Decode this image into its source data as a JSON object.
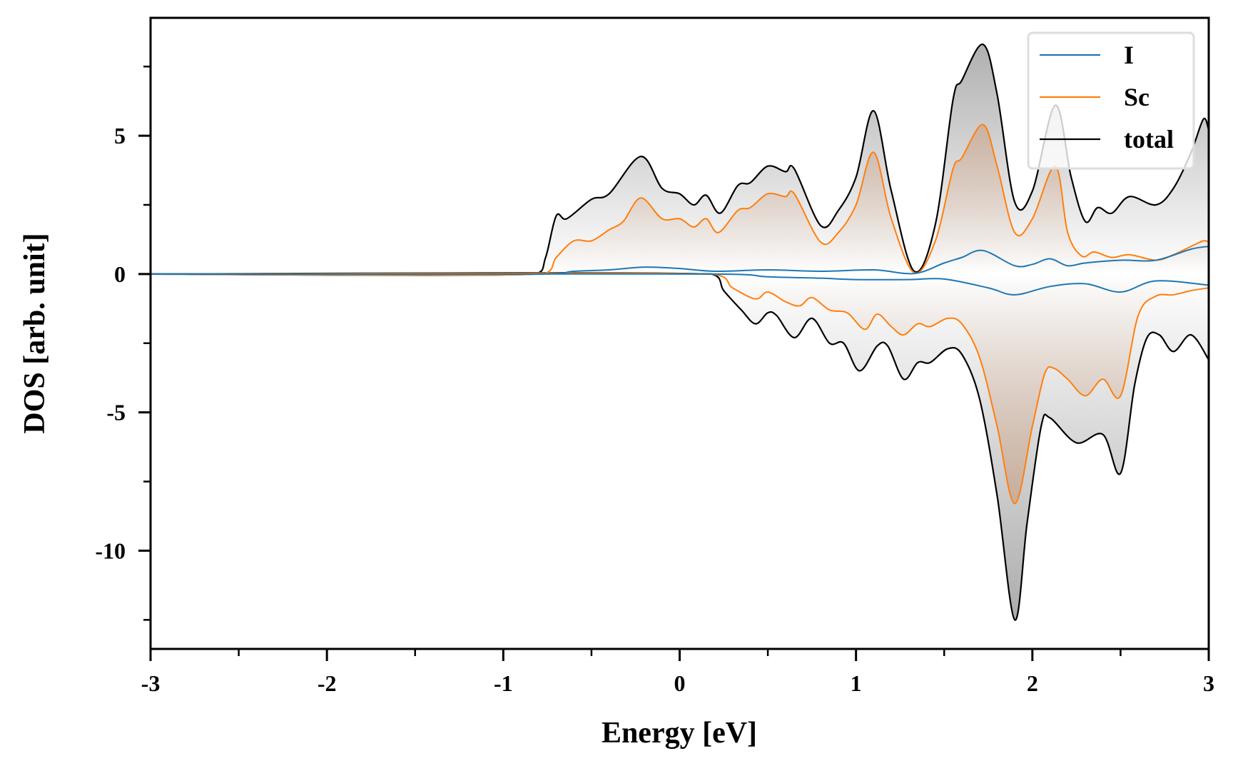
{
  "chart_data": {
    "type": "line",
    "title": "",
    "xlabel": "Energy [eV]",
    "ylabel": "DOS [arb. unit]",
    "xlim": [
      -3,
      3
    ],
    "ylim": [
      -13.55,
      9.26
    ],
    "xticks": [
      -3,
      -2,
      -1,
      0,
      1,
      2,
      3
    ],
    "xtick_labels": [
      "-3",
      "-2",
      "-1",
      "0",
      "1",
      "2",
      "3"
    ],
    "yticks": [
      -10,
      -5,
      0,
      5
    ],
    "ytick_labels": [
      "-10",
      "-5",
      "0",
      "5"
    ],
    "grid": false,
    "legend_position": "top-right",
    "series": [
      {
        "name": "I",
        "color": "#1f77b4",
        "fill": "#c8dbe8",
        "up": [
          [
            -3,
            0
          ],
          [
            -0.8,
            0
          ],
          [
            -0.6,
            0.1
          ],
          [
            -0.4,
            0.15
          ],
          [
            -0.2,
            0.25
          ],
          [
            0,
            0.2
          ],
          [
            0.2,
            0.1
          ],
          [
            0.5,
            0.15
          ],
          [
            0.8,
            0.1
          ],
          [
            1.1,
            0.15
          ],
          [
            1.33,
            0.02
          ],
          [
            1.5,
            0.4
          ],
          [
            1.6,
            0.6
          ],
          [
            1.72,
            0.85
          ],
          [
            1.9,
            0.3
          ],
          [
            2.0,
            0.35
          ],
          [
            2.1,
            0.55
          ],
          [
            2.2,
            0.3
          ],
          [
            2.3,
            0.4
          ],
          [
            2.5,
            0.5
          ],
          [
            2.7,
            0.5
          ],
          [
            2.9,
            0.9
          ],
          [
            3.0,
            1.0
          ]
        ],
        "down": [
          [
            -3,
            0
          ],
          [
            0.2,
            0
          ],
          [
            0.5,
            -0.1
          ],
          [
            0.8,
            -0.15
          ],
          [
            1.0,
            -0.2
          ],
          [
            1.3,
            -0.2
          ],
          [
            1.5,
            -0.18
          ],
          [
            1.75,
            -0.5
          ],
          [
            1.9,
            -0.75
          ],
          [
            2.1,
            -0.45
          ],
          [
            2.3,
            -0.35
          ],
          [
            2.5,
            -0.65
          ],
          [
            2.7,
            -0.25
          ],
          [
            3.0,
            -0.4
          ]
        ]
      },
      {
        "name": "Sc",
        "color": "#ff7f0e",
        "fill": "#c8916a",
        "up": [
          [
            -3,
            0
          ],
          [
            -0.78,
            0
          ],
          [
            -0.7,
            0.6
          ],
          [
            -0.6,
            1.2
          ],
          [
            -0.5,
            1.2
          ],
          [
            -0.4,
            1.6
          ],
          [
            -0.32,
            1.9
          ],
          [
            -0.22,
            2.75
          ],
          [
            -0.1,
            2.0
          ],
          [
            0,
            2.0
          ],
          [
            0.08,
            1.7
          ],
          [
            0.15,
            2.0
          ],
          [
            0.22,
            1.5
          ],
          [
            0.33,
            2.3
          ],
          [
            0.4,
            2.4
          ],
          [
            0.5,
            2.9
          ],
          [
            0.6,
            2.8
          ],
          [
            0.65,
            2.9
          ],
          [
            0.8,
            1.15
          ],
          [
            0.9,
            1.5
          ],
          [
            1.0,
            2.5
          ],
          [
            1.1,
            4.4
          ],
          [
            1.2,
            2.0
          ],
          [
            1.33,
            0.05
          ],
          [
            1.45,
            1.2
          ],
          [
            1.55,
            3.8
          ],
          [
            1.6,
            4.2
          ],
          [
            1.72,
            5.4
          ],
          [
            1.8,
            3.9
          ],
          [
            1.9,
            1.5
          ],
          [
            2.0,
            2.0
          ],
          [
            2.13,
            3.9
          ],
          [
            2.2,
            1.5
          ],
          [
            2.28,
            0.65
          ],
          [
            2.35,
            0.8
          ],
          [
            2.45,
            0.6
          ],
          [
            2.55,
            0.7
          ],
          [
            2.7,
            0.5
          ],
          [
            2.8,
            0.7
          ],
          [
            2.9,
            1.0
          ],
          [
            2.97,
            1.2
          ],
          [
            3.0,
            1.15
          ]
        ],
        "down": [
          [
            -3,
            0
          ],
          [
            0.18,
            0
          ],
          [
            0.3,
            -0.5
          ],
          [
            0.43,
            -0.9
          ],
          [
            0.5,
            -0.65
          ],
          [
            0.6,
            -1.0
          ],
          [
            0.68,
            -1.15
          ],
          [
            0.75,
            -0.85
          ],
          [
            0.85,
            -1.3
          ],
          [
            0.95,
            -1.4
          ],
          [
            1.05,
            -2.0
          ],
          [
            1.12,
            -1.45
          ],
          [
            1.2,
            -1.9
          ],
          [
            1.27,
            -2.2
          ],
          [
            1.35,
            -1.8
          ],
          [
            1.42,
            -1.9
          ],
          [
            1.52,
            -1.6
          ],
          [
            1.6,
            -1.8
          ],
          [
            1.7,
            -3.0
          ],
          [
            1.8,
            -5.5
          ],
          [
            1.9,
            -8.3
          ],
          [
            2.0,
            -5.5
          ],
          [
            2.07,
            -3.6
          ],
          [
            2.12,
            -3.4
          ],
          [
            2.2,
            -3.8
          ],
          [
            2.3,
            -4.4
          ],
          [
            2.4,
            -3.8
          ],
          [
            2.5,
            -4.4
          ],
          [
            2.6,
            -1.5
          ],
          [
            2.7,
            -0.8
          ],
          [
            2.8,
            -0.75
          ],
          [
            2.9,
            -0.6
          ],
          [
            3.0,
            -0.5
          ]
        ]
      },
      {
        "name": "total",
        "color": "#000000",
        "fill": "#8c8c8c",
        "up": [
          [
            -3,
            0
          ],
          [
            -0.82,
            0
          ],
          [
            -0.76,
            0.6
          ],
          [
            -0.7,
            2.1
          ],
          [
            -0.64,
            2.0
          ],
          [
            -0.5,
            2.7
          ],
          [
            -0.4,
            2.9
          ],
          [
            -0.22,
            4.25
          ],
          [
            -0.1,
            3.1
          ],
          [
            0,
            2.9
          ],
          [
            0.08,
            2.5
          ],
          [
            0.15,
            2.85
          ],
          [
            0.23,
            2.2
          ],
          [
            0.33,
            3.2
          ],
          [
            0.4,
            3.3
          ],
          [
            0.5,
            3.9
          ],
          [
            0.6,
            3.7
          ],
          [
            0.65,
            3.8
          ],
          [
            0.8,
            1.75
          ],
          [
            0.9,
            2.3
          ],
          [
            1.0,
            3.5
          ],
          [
            1.1,
            5.9
          ],
          [
            1.2,
            3.0
          ],
          [
            1.33,
            0.1
          ],
          [
            1.45,
            1.8
          ],
          [
            1.55,
            6.3
          ],
          [
            1.6,
            7.0
          ],
          [
            1.72,
            8.3
          ],
          [
            1.8,
            6.5
          ],
          [
            1.9,
            2.6
          ],
          [
            2.0,
            3.0
          ],
          [
            2.13,
            6.1
          ],
          [
            2.22,
            3.5
          ],
          [
            2.3,
            1.9
          ],
          [
            2.37,
            2.4
          ],
          [
            2.45,
            2.2
          ],
          [
            2.55,
            2.8
          ],
          [
            2.7,
            2.5
          ],
          [
            2.8,
            3.1
          ],
          [
            2.9,
            4.4
          ],
          [
            2.97,
            5.6
          ],
          [
            3.0,
            5.2
          ]
        ],
        "down": [
          [
            -3,
            0
          ],
          [
            0.18,
            0
          ],
          [
            0.25,
            -0.6
          ],
          [
            0.35,
            -1.3
          ],
          [
            0.43,
            -1.8
          ],
          [
            0.5,
            -1.4
          ],
          [
            0.55,
            -1.5
          ],
          [
            0.65,
            -2.3
          ],
          [
            0.75,
            -1.6
          ],
          [
            0.85,
            -2.5
          ],
          [
            0.93,
            -2.5
          ],
          [
            1.02,
            -3.5
          ],
          [
            1.12,
            -2.6
          ],
          [
            1.18,
            -2.6
          ],
          [
            1.27,
            -3.8
          ],
          [
            1.35,
            -3.2
          ],
          [
            1.42,
            -3.2
          ],
          [
            1.52,
            -2.7
          ],
          [
            1.6,
            -2.9
          ],
          [
            1.7,
            -4.5
          ],
          [
            1.8,
            -8.0
          ],
          [
            1.9,
            -12.5
          ],
          [
            1.97,
            -9.0
          ],
          [
            2.05,
            -5.5
          ],
          [
            2.1,
            -5.2
          ],
          [
            2.25,
            -6.1
          ],
          [
            2.4,
            -5.8
          ],
          [
            2.5,
            -7.2
          ],
          [
            2.58,
            -4.0
          ],
          [
            2.65,
            -2.3
          ],
          [
            2.72,
            -2.2
          ],
          [
            2.8,
            -2.8
          ],
          [
            2.9,
            -2.2
          ],
          [
            3.0,
            -3.1
          ]
        ]
      }
    ]
  }
}
